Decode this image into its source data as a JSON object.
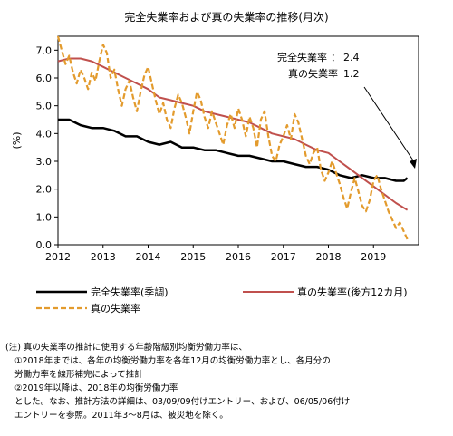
{
  "chart_data": {
    "type": "line",
    "title": "完全失業率および真の失業率の推移(月次)",
    "ylabel": "(%)",
    "ylim": [
      0,
      7.5
    ],
    "yticks": [
      "0.0",
      "1.0",
      "2.0",
      "3.0",
      "4.0",
      "5.0",
      "6.0",
      "7.0"
    ],
    "xlim": [
      2012,
      2020
    ],
    "xticks": [
      "2012",
      "2013",
      "2014",
      "2015",
      "2016",
      "2017",
      "2018",
      "2019"
    ],
    "grid": false,
    "legend_placement": "bottom",
    "annotations": [
      {
        "label": "完全失業率",
        "value": "2.4"
      },
      {
        "label": "真の失業率",
        "value": "1.2"
      }
    ],
    "series": [
      {
        "name": "完全失業率(季調)",
        "color": "#000000",
        "style": "solid",
        "x": [
          2012.0,
          2012.25,
          2012.5,
          2012.75,
          2013.0,
          2013.25,
          2013.5,
          2013.75,
          2014.0,
          2014.25,
          2014.5,
          2014.75,
          2015.0,
          2015.25,
          2015.5,
          2015.75,
          2016.0,
          2016.25,
          2016.5,
          2016.75,
          2017.0,
          2017.25,
          2017.5,
          2017.75,
          2018.0,
          2018.25,
          2018.5,
          2018.75,
          2019.0,
          2019.25,
          2019.5,
          2019.67,
          2019.75
        ],
        "y": [
          4.5,
          4.5,
          4.3,
          4.2,
          4.2,
          4.1,
          3.9,
          3.9,
          3.7,
          3.6,
          3.7,
          3.5,
          3.5,
          3.4,
          3.4,
          3.3,
          3.2,
          3.2,
          3.1,
          3.0,
          3.0,
          2.9,
          2.8,
          2.8,
          2.7,
          2.5,
          2.4,
          2.5,
          2.4,
          2.4,
          2.3,
          2.3,
          2.4
        ]
      },
      {
        "name": "真の失業率(後方12カ月)",
        "color": "#c0504d",
        "style": "solid",
        "x": [
          2012.0,
          2012.25,
          2012.5,
          2012.75,
          2013.0,
          2013.25,
          2013.5,
          2013.75,
          2014.0,
          2014.25,
          2014.5,
          2014.75,
          2015.0,
          2015.25,
          2015.5,
          2015.75,
          2016.0,
          2016.25,
          2016.5,
          2016.75,
          2017.0,
          2017.25,
          2017.5,
          2017.75,
          2018.0,
          2018.25,
          2018.5,
          2018.75,
          2019.0,
          2019.25,
          2019.5,
          2019.75
        ],
        "y": [
          6.6,
          6.7,
          6.7,
          6.6,
          6.4,
          6.2,
          6.0,
          5.8,
          5.6,
          5.3,
          5.2,
          5.1,
          5.0,
          4.8,
          4.7,
          4.6,
          4.5,
          4.4,
          4.2,
          4.0,
          3.9,
          3.8,
          3.6,
          3.4,
          3.3,
          3.0,
          2.7,
          2.4,
          2.1,
          1.8,
          1.5,
          1.25
        ]
      },
      {
        "name": "真の失業率",
        "color": "#e39b2d",
        "style": "dashed",
        "x": [
          2012.0,
          2012.083,
          2012.167,
          2012.25,
          2012.333,
          2012.417,
          2012.5,
          2012.583,
          2012.667,
          2012.75,
          2012.833,
          2012.917,
          2013.0,
          2013.083,
          2013.167,
          2013.25,
          2013.333,
          2013.417,
          2013.5,
          2013.583,
          2013.667,
          2013.75,
          2013.833,
          2013.917,
          2014.0,
          2014.083,
          2014.167,
          2014.25,
          2014.333,
          2014.417,
          2014.5,
          2014.583,
          2014.667,
          2014.75,
          2014.833,
          2014.917,
          2015.0,
          2015.083,
          2015.167,
          2015.25,
          2015.333,
          2015.417,
          2015.5,
          2015.583,
          2015.667,
          2015.75,
          2015.833,
          2015.917,
          2016.0,
          2016.083,
          2016.167,
          2016.25,
          2016.333,
          2016.417,
          2016.5,
          2016.583,
          2016.667,
          2016.75,
          2016.833,
          2016.917,
          2017.0,
          2017.083,
          2017.167,
          2017.25,
          2017.333,
          2017.417,
          2017.5,
          2017.583,
          2017.667,
          2017.75,
          2017.833,
          2017.917,
          2018.0,
          2018.083,
          2018.167,
          2018.25,
          2018.333,
          2018.417,
          2018.5,
          2018.583,
          2018.667,
          2018.75,
          2018.833,
          2018.917,
          2019.0,
          2019.083,
          2019.167,
          2019.25,
          2019.333,
          2019.417,
          2019.5,
          2019.583,
          2019.667,
          2019.75
        ],
        "y": [
          7.5,
          7.0,
          6.5,
          6.8,
          6.2,
          5.8,
          6.3,
          6.0,
          5.6,
          6.2,
          5.9,
          6.6,
          7.2,
          6.9,
          6.0,
          6.3,
          5.6,
          5.0,
          5.6,
          5.9,
          5.3,
          4.8,
          5.5,
          6.1,
          6.4,
          5.8,
          5.2,
          4.7,
          5.1,
          4.5,
          4.2,
          4.9,
          5.4,
          5.1,
          4.6,
          4.0,
          4.8,
          5.5,
          5.2,
          4.6,
          4.2,
          4.8,
          4.4,
          4.0,
          3.6,
          4.3,
          4.7,
          4.2,
          4.9,
          4.5,
          3.9,
          4.6,
          4.2,
          3.5,
          4.5,
          4.8,
          3.9,
          3.2,
          3.0,
          3.6,
          3.9,
          4.3,
          3.8,
          4.7,
          4.4,
          3.8,
          3.2,
          2.9,
          3.3,
          3.5,
          2.7,
          2.3,
          2.6,
          3.0,
          2.6,
          2.2,
          1.7,
          1.3,
          1.9,
          2.4,
          1.9,
          1.4,
          1.2,
          1.6,
          2.3,
          2.5,
          2.0,
          1.6,
          1.2,
          0.9,
          0.6,
          0.8,
          0.5,
          0.2
        ]
      }
    ]
  },
  "notes": [
    "(注)  真の失業率の推計に使用する年齢階級別均衡労働力率は、",
    "①2018年までは、各年の均衡労働力率を各年12月の均衡労働力率とし、各月分の",
    "労働力率を線形補完によって推計",
    "②2019年以降は、2018年の均衡労働力率",
    "とした。なお、推計方法の詳細は、03/09/09付けエントリー、および、06/05/06付け",
    "エントリーを参照。2011年3～8月は、被災地を除く。"
  ]
}
